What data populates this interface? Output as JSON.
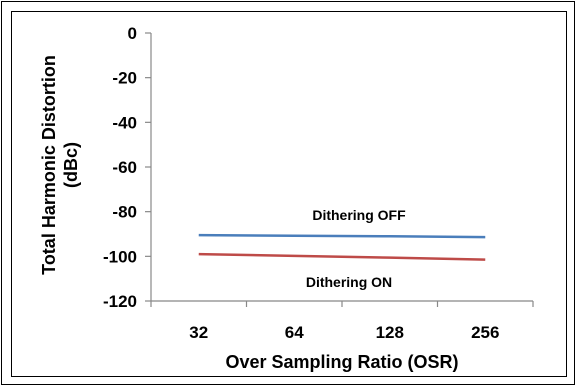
{
  "chart_data": {
    "type": "line",
    "title": "",
    "xlabel": "Over Sampling Ratio (OSR)",
    "ylabel_line1": "Total Harmonic Distortion",
    "ylabel_line2": "(dBc)",
    "categories": [
      "32",
      "64",
      "128",
      "256"
    ],
    "ylim": [
      -120,
      0
    ],
    "yticks": [
      0,
      -20,
      -40,
      -60,
      -80,
      -100,
      -120
    ],
    "ytick_labels": [
      "0",
      "-20",
      "-40",
      "-60",
      "-80",
      "-100",
      "-120"
    ],
    "grid": false,
    "legend": "none",
    "series": [
      {
        "name": "Dithering OFF",
        "values": [
          -90.5,
          -90.8,
          -91.0,
          -91.4
        ],
        "color": "#4a7ebb"
      },
      {
        "name": "Dithering ON",
        "values": [
          -99.0,
          -99.8,
          -100.6,
          -101.5
        ],
        "color": "#be4b48"
      }
    ]
  }
}
